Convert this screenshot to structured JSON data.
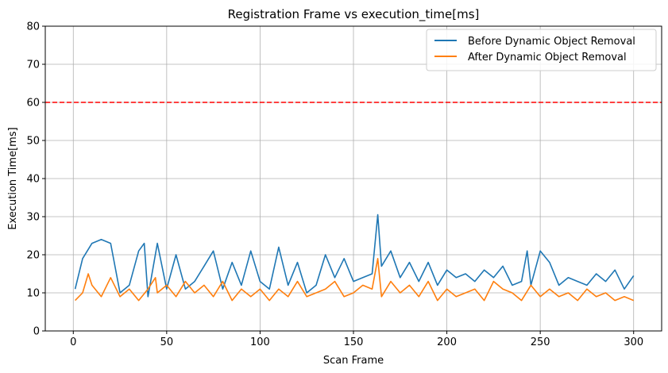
{
  "chart_data": {
    "type": "line",
    "title": "Registration  Frame vs execution_time[ms]",
    "xlabel": "Scan Frame",
    "ylabel": "Execution Time[ms]",
    "xlim": [
      -15,
      315
    ],
    "ylim": [
      0,
      80
    ],
    "xticks": [
      "0",
      "50",
      "100",
      "150",
      "200",
      "250",
      "300"
    ],
    "yticks": [
      "0",
      "10",
      "20",
      "30",
      "40",
      "50",
      "60",
      "70",
      "80"
    ],
    "grid": true,
    "legend_position": "top-right",
    "threshold": {
      "value": 60,
      "color": "#ff0000",
      "style": "dashed"
    },
    "series": [
      {
        "name": "Before Dynamic Object Removal",
        "color": "#1f77b4",
        "x": [
          1,
          5,
          10,
          15,
          20,
          25,
          30,
          35,
          38,
          40,
          45,
          50,
          55,
          60,
          65,
          70,
          75,
          80,
          85,
          90,
          95,
          100,
          105,
          110,
          115,
          120,
          125,
          130,
          135,
          140,
          145,
          150,
          155,
          160,
          163,
          165,
          170,
          175,
          180,
          185,
          190,
          195,
          200,
          205,
          210,
          215,
          220,
          225,
          230,
          235,
          240,
          243,
          245,
          250,
          255,
          260,
          265,
          270,
          275,
          280,
          285,
          290,
          295,
          300
        ],
        "values": [
          11,
          19,
          23,
          24,
          23,
          10,
          12,
          21,
          23,
          9,
          23,
          11,
          20,
          11,
          13,
          17,
          21,
          11,
          18,
          12,
          21,
          13,
          11,
          22,
          12,
          18,
          10,
          12,
          20,
          14,
          19,
          13,
          14,
          15,
          30.5,
          17,
          21,
          14,
          18,
          13,
          18,
          12,
          16,
          14,
          15,
          13,
          16,
          14,
          17,
          12,
          13,
          21,
          12,
          21,
          18,
          12,
          14,
          13,
          12,
          15,
          13,
          16,
          11,
          14.5
        ]
      },
      {
        "name": "After Dynamic Object Removal",
        "color": "#ff7f0e",
        "x": [
          1,
          5,
          8,
          10,
          15,
          20,
          25,
          30,
          35,
          40,
          44,
          45,
          50,
          55,
          60,
          65,
          70,
          75,
          80,
          85,
          90,
          95,
          100,
          105,
          110,
          115,
          120,
          125,
          130,
          135,
          140,
          145,
          150,
          155,
          160,
          163,
          165,
          170,
          175,
          180,
          185,
          190,
          195,
          200,
          205,
          210,
          215,
          220,
          225,
          230,
          235,
          240,
          245,
          250,
          255,
          260,
          265,
          270,
          275,
          280,
          285,
          290,
          295,
          300
        ],
        "values": [
          8,
          10,
          15,
          12,
          9,
          14,
          9,
          11,
          8,
          11,
          14,
          10,
          12,
          9,
          13,
          10,
          12,
          9,
          13,
          8,
          11,
          9,
          11,
          8,
          11,
          9,
          13,
          9,
          10,
          11,
          13,
          9,
          10,
          12,
          11,
          19,
          9,
          13,
          10,
          12,
          9,
          13,
          8,
          11,
          9,
          10,
          11,
          8,
          13,
          11,
          10,
          8,
          12,
          9,
          11,
          9,
          10,
          8,
          11,
          9,
          10,
          8,
          9,
          8
        ]
      }
    ]
  }
}
